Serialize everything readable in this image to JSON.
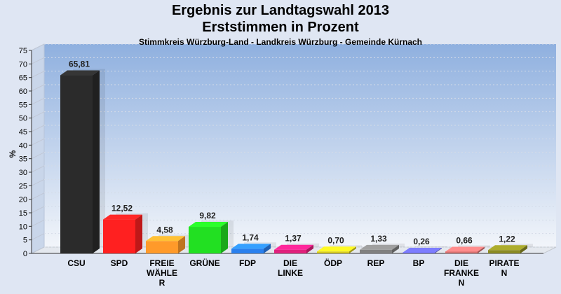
{
  "chart_data": {
    "type": "bar",
    "title": "Ergebnis zur Landtagswahl 2013",
    "subtitle": "Erststimmen in Prozent",
    "caption": "Stimmkreis Würzburg-Land - Landkreis Würzburg - Gemeinde Kürnach",
    "ylabel": "%",
    "ylim": [
      0,
      75
    ],
    "ystep": 5,
    "grid": true,
    "categories": [
      [
        "CSU"
      ],
      [
        "SPD"
      ],
      [
        "FREIE",
        "WÄHLE",
        "R"
      ],
      [
        "GRÜNE"
      ],
      [
        "FDP"
      ],
      [
        "DIE",
        "LINKE"
      ],
      [
        "ÖDP"
      ],
      [
        "REP"
      ],
      [
        "BP"
      ],
      [
        "DIE",
        "FRANKE",
        "N"
      ],
      [
        "PIRATE",
        "N"
      ]
    ],
    "values": [
      65.81,
      12.52,
      4.58,
      9.82,
      1.74,
      1.37,
      0.7,
      1.33,
      0.26,
      0.66,
      1.22
    ],
    "value_labels": [
      "65,81",
      "12,52",
      "4,58",
      "9,82",
      "1,74",
      "1,37",
      "0,70",
      "1,33",
      "0,26",
      "0,66",
      "1,22"
    ],
    "colors": [
      "#2b2b2b",
      "#ff2020",
      "#ff9a2a",
      "#22e022",
      "#2a80ee",
      "#e0207c",
      "#d4c81c",
      "#808080",
      "#6464d2",
      "#d47070",
      "#8a8a24"
    ]
  }
}
